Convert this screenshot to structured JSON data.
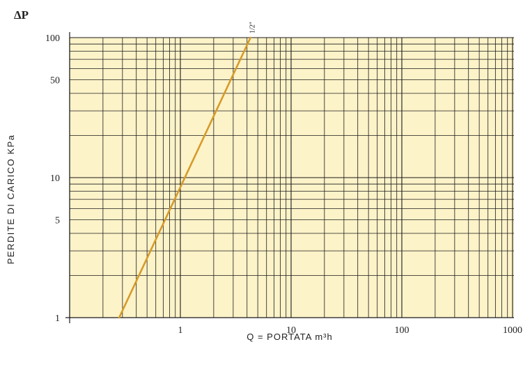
{
  "chart_data": {
    "type": "line",
    "ylabel_symbol": "ΔP",
    "ylabel": "PERDITE DI CARICO KPa",
    "xlabel": "Q = PORTATA m³h",
    "xscale": "log",
    "yscale": "log",
    "xlim": [
      0.1,
      1000
    ],
    "ylim": [
      1,
      100
    ],
    "x_tick_labels": [
      "1",
      "10",
      "100",
      "1000"
    ],
    "y_tick_labels": [
      "1",
      "5",
      "10",
      "50",
      "100"
    ],
    "grid": true,
    "series": [
      {
        "name": "1/2\"",
        "x": [
          0.28,
          4.3
        ],
        "y": [
          1,
          100
        ]
      }
    ]
  },
  "colors": {
    "plot_background": "#fdf3c9",
    "grid": "#1a1a1a",
    "series_line": "#d69a2a",
    "text": "#222222"
  }
}
